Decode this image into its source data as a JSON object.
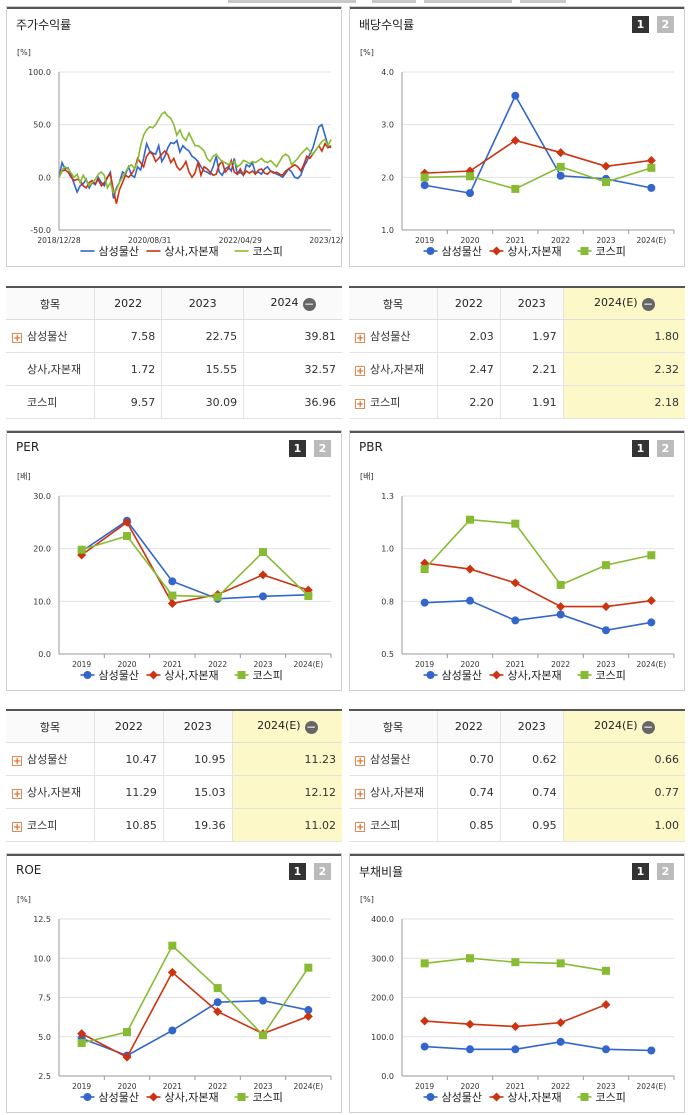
{
  "panels": [
    {
      "id": "return",
      "title": "주가수익률",
      "pages": [],
      "chart_data": {
        "type": "line",
        "unit": "[%]",
        "xticks": [
          "2018/12/28",
          "2020/08/31",
          "2022/04/29",
          "2023/12/28"
        ],
        "yticks": [
          "100.0",
          "50.0",
          "0.0",
          "-50.0"
        ],
        "ylim": [
          -50,
          100
        ],
        "series": [
          {
            "name": "삼성물산",
            "color": "#3366cc",
            "values": [
              0,
              14,
              8,
              9,
              2,
              -6,
              -14,
              -8,
              -6,
              -2,
              -10,
              -5,
              -7,
              0,
              -5,
              -8,
              0,
              5,
              -20,
              -10,
              -5,
              5,
              3,
              10,
              2,
              0,
              10,
              7,
              18,
              32,
              25,
              23,
              22,
              30,
              15,
              20,
              28,
              33,
              32,
              35,
              24,
              30,
              27,
              25,
              20,
              18,
              15,
              10,
              6,
              5,
              3,
              10,
              20,
              5,
              2,
              8,
              10,
              6,
              18,
              3,
              5,
              2,
              12,
              10,
              14,
              4,
              5,
              3,
              8,
              10,
              6,
              5,
              3,
              2,
              0,
              4,
              8,
              5,
              0,
              -1,
              2,
              10,
              15,
              22,
              28,
              38,
              48,
              50,
              40,
              30,
              28
            ]
          },
          {
            "name": "상사,자본재",
            "color": "#cc3311",
            "values": [
              0,
              6,
              7,
              5,
              0,
              -3,
              -2,
              -3,
              -8,
              -10,
              -5,
              -3,
              -6,
              -2,
              -8,
              -5,
              0,
              3,
              -12,
              -25,
              -12,
              -5,
              2,
              0,
              3,
              8,
              18,
              14,
              10,
              20,
              24,
              22,
              15,
              18,
              22,
              25,
              22,
              14,
              18,
              10,
              7,
              10,
              15,
              5,
              0,
              4,
              14,
              2,
              10,
              8,
              5,
              2,
              3,
              12,
              15,
              5,
              8,
              16,
              5,
              3,
              8,
              2,
              6,
              4,
              6,
              3,
              7,
              8,
              4,
              3,
              6,
              4,
              5,
              3,
              2,
              6,
              8,
              10,
              12,
              10,
              6,
              12,
              20,
              18,
              22,
              26,
              30,
              25,
              32,
              28,
              30
            ]
          },
          {
            "name": "코스피",
            "color": "#88bb33",
            "values": [
              0,
              7,
              10,
              8,
              4,
              0,
              3,
              -5,
              2,
              -3,
              -8,
              -5,
              -2,
              3,
              5,
              2,
              -10,
              -5,
              -15,
              -12,
              -5,
              0,
              5,
              10,
              12,
              8,
              15,
              30,
              40,
              45,
              48,
              47,
              50,
              55,
              60,
              62,
              58,
              56,
              50,
              40,
              45,
              38,
              35,
              42,
              36,
              30,
              30,
              28,
              25,
              18,
              15,
              20,
              22,
              18,
              15,
              14,
              12,
              14,
              15,
              10,
              12,
              16,
              15,
              13,
              15,
              14,
              16,
              18,
              15,
              14,
              16,
              13,
              10,
              15,
              20,
              22,
              20,
              12,
              15,
              18,
              22,
              25,
              28,
              25,
              22,
              26,
              30,
              34,
              36,
              30,
              36
            ]
          }
        ]
      }
    },
    {
      "id": "dividend",
      "title": "배당수익률",
      "pages": [
        "1",
        "2"
      ],
      "chart_data": {
        "type": "line",
        "unit": "[%]",
        "categories": [
          "2019",
          "2020",
          "2021",
          "2022",
          "2023",
          "2024(E)"
        ],
        "yticks": [
          "4.0",
          "3.0",
          "2.0",
          "1.0"
        ],
        "ylim": [
          1,
          4
        ],
        "series": [
          {
            "name": "삼성물산",
            "color": "#3366cc",
            "marker": "circle",
            "values": [
              1.85,
              1.7,
              3.55,
              2.03,
              1.97,
              1.8
            ]
          },
          {
            "name": "상사,자본재",
            "color": "#cc3311",
            "marker": "diamond",
            "values": [
              2.08,
              2.12,
              2.7,
              2.47,
              2.21,
              2.32
            ]
          },
          {
            "name": "코스피",
            "color": "#88bb33",
            "marker": "square",
            "values": [
              2.0,
              2.02,
              1.78,
              2.2,
              1.91,
              2.18
            ]
          }
        ]
      }
    },
    {
      "id": "per",
      "title": "PER",
      "pages": [
        "1",
        "2"
      ],
      "chart_data": {
        "type": "line",
        "unit": "[배]",
        "categories": [
          "2019",
          "2020",
          "2021",
          "2022",
          "2023",
          "2024(E)"
        ],
        "yticks": [
          "30.0",
          "20.0",
          "10.0",
          "0.0"
        ],
        "ylim": [
          0,
          30
        ],
        "series": [
          {
            "name": "삼성물산",
            "color": "#3366cc",
            "marker": "circle",
            "values": [
              19.5,
              25.3,
              13.8,
              10.47,
              10.95,
              11.23
            ]
          },
          {
            "name": "상사,자본재",
            "color": "#cc3311",
            "marker": "diamond",
            "values": [
              18.8,
              25.0,
              9.6,
              11.29,
              15.03,
              12.12
            ]
          },
          {
            "name": "코스피",
            "color": "#88bb33",
            "marker": "square",
            "values": [
              19.8,
              22.4,
              11.1,
              10.85,
              19.36,
              11.02
            ]
          }
        ]
      }
    },
    {
      "id": "pbr",
      "title": "PBR",
      "pages": [
        "1",
        "2"
      ],
      "chart_data": {
        "type": "line",
        "unit": "[배]",
        "categories": [
          "2019",
          "2020",
          "2021",
          "2022",
          "2023",
          "2024(E)"
        ],
        "yticks": [
          "1.3",
          "1.0",
          "0.8",
          "0.5"
        ],
        "ylim": [
          0.5,
          1.3
        ],
        "series": [
          {
            "name": "삼성물산",
            "color": "#3366cc",
            "marker": "circle",
            "values": [
              0.76,
              0.77,
              0.67,
              0.7,
              0.62,
              0.66
            ]
          },
          {
            "name": "상사,자본재",
            "color": "#cc3311",
            "marker": "diamond",
            "values": [
              0.96,
              0.93,
              0.86,
              0.74,
              0.74,
              0.77
            ]
          },
          {
            "name": "코스피",
            "color": "#88bb33",
            "marker": "square",
            "values": [
              0.93,
              1.18,
              1.16,
              0.85,
              0.95,
              1.0
            ]
          }
        ]
      }
    },
    {
      "id": "roe",
      "title": "ROE",
      "pages": [
        "1",
        "2"
      ],
      "chart_data": {
        "type": "line",
        "unit": "[%]",
        "categories": [
          "2019",
          "2020",
          "2021",
          "2022",
          "2023",
          "2024(E)"
        ],
        "yticks": [
          "12.5",
          "10.0",
          "7.5",
          "5.0",
          "2.5"
        ],
        "ylim": [
          2.5,
          12.5
        ],
        "series": [
          {
            "name": "삼성물산",
            "color": "#3366cc",
            "marker": "circle",
            "values": [
              4.9,
              3.8,
              5.4,
              7.2,
              7.3,
              6.7
            ]
          },
          {
            "name": "상사,자본재",
            "color": "#cc3311",
            "marker": "diamond",
            "values": [
              5.2,
              3.7,
              9.1,
              6.6,
              5.2,
              6.3
            ]
          },
          {
            "name": "코스피",
            "color": "#88bb33",
            "marker": "square",
            "values": [
              4.6,
              5.3,
              10.8,
              8.1,
              5.1,
              9.4
            ]
          }
        ]
      }
    },
    {
      "id": "debt",
      "title": "부채비율",
      "pages": [
        "1",
        "2"
      ],
      "chart_data": {
        "type": "line",
        "unit": "[%]",
        "categories": [
          "2019",
          "2020",
          "2021",
          "2022",
          "2023",
          "2024(E)"
        ],
        "yticks": [
          "400.0",
          "300.0",
          "200.0",
          "100.0",
          "0.0"
        ],
        "ylim": [
          0,
          400
        ],
        "series": [
          {
            "name": "삼성물산",
            "color": "#3366cc",
            "marker": "circle",
            "values": [
              75,
              68,
              68,
              87,
              68,
              65
            ]
          },
          {
            "name": "상사,자본재",
            "color": "#cc3311",
            "marker": "diamond",
            "values": [
              140,
              132,
              126,
              136,
              182,
              null
            ]
          },
          {
            "name": "코스피",
            "color": "#88bb33",
            "marker": "square",
            "values": [
              287,
              300,
              290,
              287,
              268,
              null
            ]
          }
        ]
      }
    }
  ],
  "tables": [
    {
      "id": "return-table",
      "headers": [
        "항목",
        "2022",
        "2023",
        "2024"
      ],
      "minus_on_last": true,
      "highlight_last": false,
      "rows": [
        {
          "name": "삼성물산",
          "plus": true,
          "values": [
            "7.58",
            "22.75",
            "39.81"
          ]
        },
        {
          "name": "상사,자본재",
          "plus": false,
          "values": [
            "1.72",
            "15.55",
            "32.57"
          ]
        },
        {
          "name": "코스피",
          "plus": false,
          "values": [
            "9.57",
            "30.09",
            "36.96"
          ]
        }
      ]
    },
    {
      "id": "dividend-table",
      "headers": [
        "항목",
        "2022",
        "2023",
        "2024(E)"
      ],
      "minus_on_last": true,
      "highlight_last": true,
      "rows": [
        {
          "name": "삼성물산",
          "plus": true,
          "values": [
            "2.03",
            "1.97",
            "1.80"
          ]
        },
        {
          "name": "상사,자본재",
          "plus": true,
          "values": [
            "2.47",
            "2.21",
            "2.32"
          ]
        },
        {
          "name": "코스피",
          "plus": true,
          "values": [
            "2.20",
            "1.91",
            "2.18"
          ]
        }
      ]
    },
    {
      "id": "per-table",
      "headers": [
        "항목",
        "2022",
        "2023",
        "2024(E)"
      ],
      "minus_on_last": true,
      "highlight_last": true,
      "rows": [
        {
          "name": "삼성물산",
          "plus": true,
          "values": [
            "10.47",
            "10.95",
            "11.23"
          ]
        },
        {
          "name": "상사,자본재",
          "plus": true,
          "values": [
            "11.29",
            "15.03",
            "12.12"
          ]
        },
        {
          "name": "코스피",
          "plus": true,
          "values": [
            "10.85",
            "19.36",
            "11.02"
          ]
        }
      ]
    },
    {
      "id": "pbr-table",
      "headers": [
        "항목",
        "2022",
        "2023",
        "2024(E)"
      ],
      "minus_on_last": true,
      "highlight_last": true,
      "rows": [
        {
          "name": "삼성물산",
          "plus": true,
          "values": [
            "0.70",
            "0.62",
            "0.66"
          ]
        },
        {
          "name": "상사,자본재",
          "plus": true,
          "values": [
            "0.74",
            "0.74",
            "0.77"
          ]
        },
        {
          "name": "코스피",
          "plus": true,
          "values": [
            "0.85",
            "0.95",
            "1.00"
          ]
        }
      ]
    }
  ]
}
